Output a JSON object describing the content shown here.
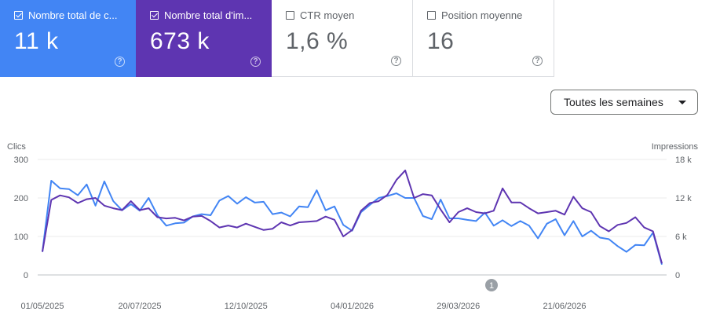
{
  "cards": [
    {
      "label": "Nombre total de c...",
      "value": "11 k",
      "active": true,
      "color": "#4285f4"
    },
    {
      "label": "Nombre total d'im...",
      "value": "673 k",
      "active": true,
      "color": "#5e35b1"
    },
    {
      "label": "CTR moyen",
      "value": "1,6 %",
      "active": false,
      "color": "#ffffff"
    },
    {
      "label": "Position moyenne",
      "value": "16",
      "active": false,
      "color": "#ffffff"
    }
  ],
  "help_glyph": "?",
  "dropdown": {
    "label": "Toutes les semaines"
  },
  "annotation": {
    "label": "1"
  },
  "chart_data": {
    "type": "line",
    "left_axis": {
      "label": "Clics",
      "ticks": [
        "0",
        "100",
        "200",
        "300"
      ],
      "range": [
        0,
        300
      ]
    },
    "right_axis": {
      "label": "Impressions",
      "ticks": [
        "0",
        "6 k",
        "12 k",
        "18 k"
      ],
      "range": [
        0,
        18000
      ]
    },
    "x_labels": [
      "01/05/2025",
      "20/07/2025",
      "12/10/2025",
      "04/01/2026",
      "29/03/2026",
      "21/06/2026"
    ],
    "series": [
      {
        "name": "Nombre total de clics",
        "axis": "left",
        "color": "#4285f4",
        "values": [
          60,
          245,
          225,
          223,
          207,
          235,
          180,
          243,
          192,
          168,
          184,
          167,
          200,
          155,
          128,
          134,
          136,
          152,
          158,
          155,
          193,
          205,
          185,
          202,
          188,
          190,
          158,
          162,
          152,
          178,
          176,
          220,
          168,
          178,
          130,
          115,
          163,
          182,
          200,
          205,
          212,
          200,
          200,
          153,
          145,
          196,
          147,
          147,
          143,
          140,
          162,
          128,
          142,
          127,
          140,
          128,
          95,
          133,
          145,
          103,
          140,
          100,
          115,
          97,
          93,
          75,
          60,
          78,
          77,
          110,
          27
        ]
      },
      {
        "name": "Nombre total d'impressions",
        "axis": "right",
        "color": "#5e35b1",
        "values": [
          3600,
          11700,
          12400,
          12100,
          11200,
          11800,
          12000,
          10800,
          10400,
          10100,
          11500,
          10100,
          10400,
          9000,
          8800,
          8900,
          8500,
          9100,
          9200,
          8400,
          7400,
          7700,
          7400,
          8000,
          7500,
          7000,
          7200,
          8200,
          7700,
          8200,
          8300,
          8400,
          9100,
          8600,
          6000,
          7000,
          10000,
          11200,
          11500,
          12500,
          14800,
          16300,
          12000,
          12600,
          12400,
          10200,
          8200,
          9800,
          10400,
          9800,
          9600,
          10000,
          13500,
          11300,
          11300,
          10400,
          9600,
          9800,
          10000,
          9400,
          12200,
          10400,
          9800,
          7600,
          6800,
          7800,
          8100,
          9000,
          7400,
          6800,
          1800
        ]
      }
    ]
  }
}
